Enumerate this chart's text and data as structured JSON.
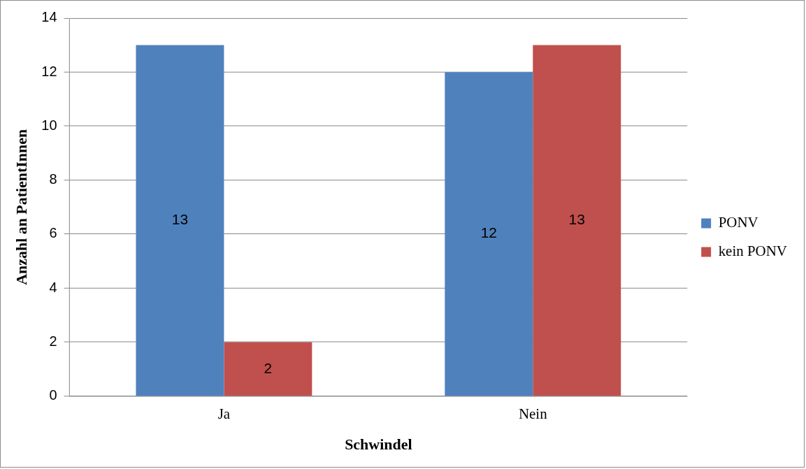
{
  "chart_data": {
    "type": "bar",
    "xlabel": "Schwindel",
    "ylabel": "Anzahl an PatientInnen",
    "categories": [
      "Ja",
      "Nein"
    ],
    "series": [
      {
        "name": "PONV",
        "color": "#4f81bd",
        "values": [
          13,
          12
        ]
      },
      {
        "name": "kein PONV",
        "color": "#c0504d",
        "values": [
          2,
          13
        ]
      }
    ],
    "ylim": [
      0,
      14
    ],
    "yticks": [
      0,
      2,
      4,
      6,
      8,
      10,
      12,
      14
    ],
    "grid": "y",
    "legend": "right",
    "data_labels": true
  }
}
